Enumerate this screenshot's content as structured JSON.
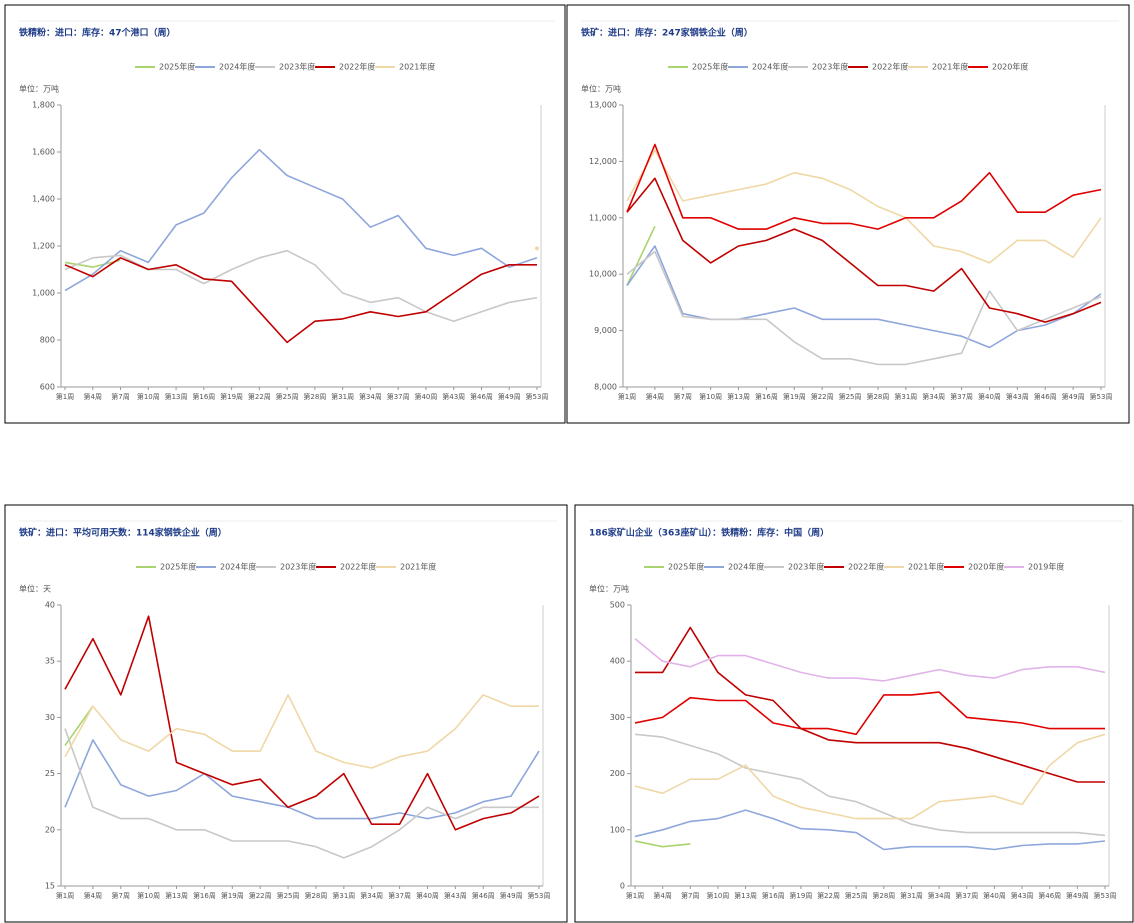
{
  "chart_data": [
    {
      "type": "line",
      "title": "铁精粉：进口：库存：47个港口（周）",
      "unit_label": "单位：万吨",
      "categories": [
        "第1周",
        "第4周",
        "第7周",
        "第10周",
        "第13周",
        "第16周",
        "第19周",
        "第22周",
        "第25周",
        "第28周",
        "第31周",
        "第34周",
        "第37周",
        "第40周",
        "第43周",
        "第46周",
        "第49周",
        "第53周"
      ],
      "ylim": [
        600,
        1800
      ],
      "yticks": [
        600,
        800,
        {
          "value": 1000,
          "label": "1,000"
        },
        {
          "value": 1200,
          "label": "1,200"
        },
        {
          "value": 1400,
          "label": "1,400"
        },
        {
          "value": 1600,
          "label": "1,600"
        },
        {
          "value": 1800,
          "label": "1,800"
        }
      ],
      "series": [
        {
          "name": "2025年度",
          "color": "#a9d46f",
          "values": [
            1130,
            1110,
            1140,
            null,
            null,
            null,
            null,
            null,
            null,
            null,
            null,
            null,
            null,
            null,
            null,
            null,
            null,
            null
          ]
        },
        {
          "name": "2024年度",
          "color": "#8fa6dc",
          "values": [
            1010,
            1080,
            1180,
            1130,
            1290,
            1340,
            1490,
            1610,
            1500,
            1450,
            1400,
            1280,
            1330,
            1190,
            1160,
            1190,
            1110,
            1150
          ]
        },
        {
          "name": "2023年度",
          "color": "#c8c8c8",
          "values": [
            1100,
            1150,
            1160,
            1100,
            1100,
            1040,
            1100,
            1150,
            1180,
            1120,
            1000,
            960,
            980,
            920,
            880,
            920,
            960,
            980
          ]
        },
        {
          "name": "2022年度",
          "color": "#c00000",
          "values": [
            1120,
            1070,
            1150,
            1100,
            1120,
            1060,
            1050,
            920,
            790,
            880,
            890,
            920,
            900,
            920,
            1000,
            1080,
            1120,
            1120
          ]
        },
        {
          "name": "2021年度",
          "color": "#efd8a6",
          "values": [
            null,
            null,
            null,
            null,
            null,
            null,
            null,
            null,
            null,
            null,
            null,
            null,
            null,
            null,
            null,
            null,
            null,
            1190
          ]
        }
      ]
    },
    {
      "type": "line",
      "title": "铁矿：进口：库存：247家钢铁企业（周）",
      "unit_label": "单位：万吨",
      "categories": [
        "第1周",
        "第4周",
        "第7周",
        "第10周",
        "第13周",
        "第16周",
        "第19周",
        "第22周",
        "第25周",
        "第28周",
        "第31周",
        "第34周",
        "第37周",
        "第40周",
        "第43周",
        "第46周",
        "第49周",
        "第53周"
      ],
      "ylim": [
        8000,
        13000
      ],
      "yticks": [
        {
          "value": 8000,
          "label": "8,000"
        },
        {
          "value": 9000,
          "label": "9,000"
        },
        {
          "value": 10000,
          "label": "10,000"
        },
        {
          "value": 11000,
          "label": "11,000"
        },
        {
          "value": 12000,
          "label": "12,000"
        },
        {
          "value": 13000,
          "label": "13,000"
        }
      ],
      "series": [
        {
          "name": "2025年度",
          "color": "#a9d46f",
          "values": [
            9800,
            10850,
            null,
            null,
            null,
            null,
            null,
            null,
            null,
            null,
            null,
            null,
            null,
            null,
            null,
            null,
            null,
            null
          ]
        },
        {
          "name": "2024年度",
          "color": "#8fa6dc",
          "values": [
            9800,
            10500,
            9300,
            9200,
            9200,
            9300,
            9400,
            9200,
            9200,
            9200,
            9100,
            9000,
            8900,
            8700,
            9000,
            9100,
            9300,
            9650
          ]
        },
        {
          "name": "2023年度",
          "color": "#c8c8c8",
          "values": [
            10000,
            10400,
            9250,
            9200,
            9200,
            9200,
            8800,
            8500,
            8500,
            8400,
            8400,
            8500,
            8600,
            9700,
            9000,
            9200,
            9400,
            9600
          ]
        },
        {
          "name": "2022年度",
          "color": "#c00000",
          "values": [
            11100,
            11700,
            10600,
            10200,
            10500,
            10600,
            10800,
            10600,
            10200,
            9800,
            9800,
            9700,
            10100,
            9400,
            9300,
            9150,
            9300,
            9500
          ]
        },
        {
          "name": "2021年度",
          "color": "#efd8a6",
          "values": [
            11300,
            12200,
            11300,
            11400,
            11500,
            11600,
            11800,
            11700,
            11500,
            11200,
            11000,
            10500,
            10400,
            10200,
            10600,
            10600,
            10300,
            11000
          ]
        },
        {
          "name": "2020年度",
          "color": "#e00000",
          "values": [
            11100,
            12300,
            11000,
            11000,
            10800,
            10800,
            11000,
            10900,
            10900,
            10800,
            11000,
            11000,
            11300,
            11800,
            11100,
            11100,
            11400,
            11500
          ]
        }
      ]
    },
    {
      "type": "line",
      "title": "铁矿：进口：平均可用天数：114家钢铁企业（周）",
      "unit_label": "单位：天",
      "categories": [
        "第1周",
        "第4周",
        "第7周",
        "第10周",
        "第13周",
        "第16周",
        "第19周",
        "第22周",
        "第25周",
        "第28周",
        "第31周",
        "第34周",
        "第37周",
        "第40周",
        "第43周",
        "第46周",
        "第49周",
        "第53周"
      ],
      "ylim": [
        15,
        40
      ],
      "yticks": [
        15,
        20,
        25,
        30,
        35,
        40
      ],
      "series": [
        {
          "name": "2025年度",
          "color": "#a9d46f",
          "values": [
            27.5,
            31,
            null,
            null,
            null,
            null,
            null,
            null,
            null,
            null,
            null,
            null,
            null,
            null,
            null,
            null,
            null,
            null
          ]
        },
        {
          "name": "2024年度",
          "color": "#8fa6dc",
          "values": [
            22,
            28,
            24,
            23,
            23.5,
            25,
            23,
            22.5,
            22,
            21,
            21,
            21,
            21.5,
            21,
            21.5,
            22.5,
            23,
            27
          ]
        },
        {
          "name": "2023年度",
          "color": "#c8c8c8",
          "values": [
            29,
            22,
            21,
            21,
            20,
            20,
            19,
            19,
            19,
            18.5,
            17.5,
            18.5,
            20,
            22,
            21,
            22,
            22,
            22
          ]
        },
        {
          "name": "2022年度",
          "color": "#c00000",
          "values": [
            32.5,
            37,
            32,
            39,
            26,
            25,
            24,
            24.5,
            22,
            23,
            25,
            20.5,
            20.5,
            25,
            20,
            21,
            21.5,
            23
          ]
        },
        {
          "name": "2021年度",
          "color": "#efd8a6",
          "values": [
            26.5,
            31,
            28,
            27,
            29,
            28.5,
            27,
            27,
            32,
            27,
            26,
            25.5,
            26.5,
            27,
            29,
            32,
            31,
            31
          ]
        }
      ]
    },
    {
      "type": "line",
      "title": "186家矿山企业（363座矿山）：铁精粉：库存：中国（周）",
      "unit_label": "单位：万吨",
      "categories": [
        "第1周",
        "第4周",
        "第7周",
        "第10周",
        "第13周",
        "第16周",
        "第19周",
        "第22周",
        "第25周",
        "第28周",
        "第31周",
        "第34周",
        "第37周",
        "第40周",
        "第43周",
        "第46周",
        "第49周",
        "第53周"
      ],
      "ylim": [
        0,
        500
      ],
      "yticks": [
        0,
        100,
        200,
        300,
        400,
        500
      ],
      "series": [
        {
          "name": "2025年度",
          "color": "#a9d46f",
          "values": [
            80,
            70,
            75,
            null,
            null,
            null,
            null,
            null,
            null,
            null,
            null,
            null,
            null,
            null,
            null,
            null,
            null,
            null
          ]
        },
        {
          "name": "2024年度",
          "color": "#8fa6dc",
          "values": [
            88,
            100,
            115,
            120,
            135,
            120,
            102,
            100,
            95,
            65,
            70,
            70,
            70,
            65,
            72,
            75,
            75,
            80
          ]
        },
        {
          "name": "2023年度",
          "color": "#c8c8c8",
          "values": [
            270,
            265,
            250,
            235,
            210,
            200,
            190,
            160,
            150,
            130,
            110,
            100,
            95,
            95,
            95,
            95,
            95,
            90
          ]
        },
        {
          "name": "2022年度",
          "color": "#c00000",
          "values": [
            380,
            380,
            460,
            380,
            340,
            330,
            280,
            260,
            255,
            255,
            255,
            255,
            245,
            230,
            215,
            200,
            185,
            185
          ]
        },
        {
          "name": "2021年度",
          "color": "#efd8a6",
          "values": [
            178,
            165,
            190,
            190,
            215,
            160,
            140,
            130,
            120,
            120,
            120,
            150,
            155,
            160,
            145,
            215,
            255,
            270
          ]
        },
        {
          "name": "2020年度",
          "color": "#e00000",
          "values": [
            290,
            300,
            335,
            330,
            330,
            290,
            280,
            280,
            270,
            340,
            340,
            345,
            300,
            295,
            290,
            280,
            280,
            280
          ]
        },
        {
          "name": "2019年度",
          "color": "#e2b3ea",
          "values": [
            440,
            400,
            390,
            410,
            410,
            395,
            380,
            370,
            370,
            365,
            375,
            385,
            375,
            370,
            385,
            390,
            390,
            380
          ]
        }
      ]
    }
  ]
}
